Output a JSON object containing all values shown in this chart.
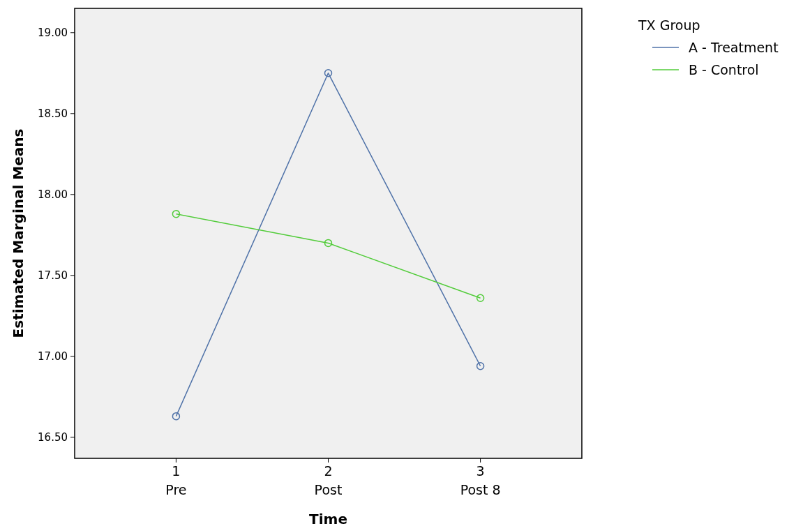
{
  "chart_data": {
    "type": "line",
    "xlabel": "Time",
    "ylabel": "Estimated Marginal Means",
    "legend_title": "TX Group",
    "categories": [
      "1\nPre",
      "2\nPost",
      "3\nPost 8"
    ],
    "series": [
      {
        "name": "A - Treatment",
        "color": "#4f72a8",
        "values": [
          16.63,
          18.75,
          16.94
        ]
      },
      {
        "name": "B - Control",
        "color": "#52cc3a",
        "values": [
          17.88,
          17.7,
          17.36
        ]
      }
    ],
    "ylim": [
      16.37,
      19.15
    ],
    "yticks": [
      {
        "value": 16.5,
        "label": "16.50"
      },
      {
        "value": 17,
        "label": "17.00"
      },
      {
        "value": 17.5,
        "label": "17.50"
      },
      {
        "value": 18,
        "label": "18.00"
      },
      {
        "value": 18.5,
        "label": "18.50"
      },
      {
        "value": 19,
        "label": "19.00"
      }
    ],
    "grid": false,
    "legend": "top right",
    "marker": "circle",
    "line_style": "solid"
  }
}
